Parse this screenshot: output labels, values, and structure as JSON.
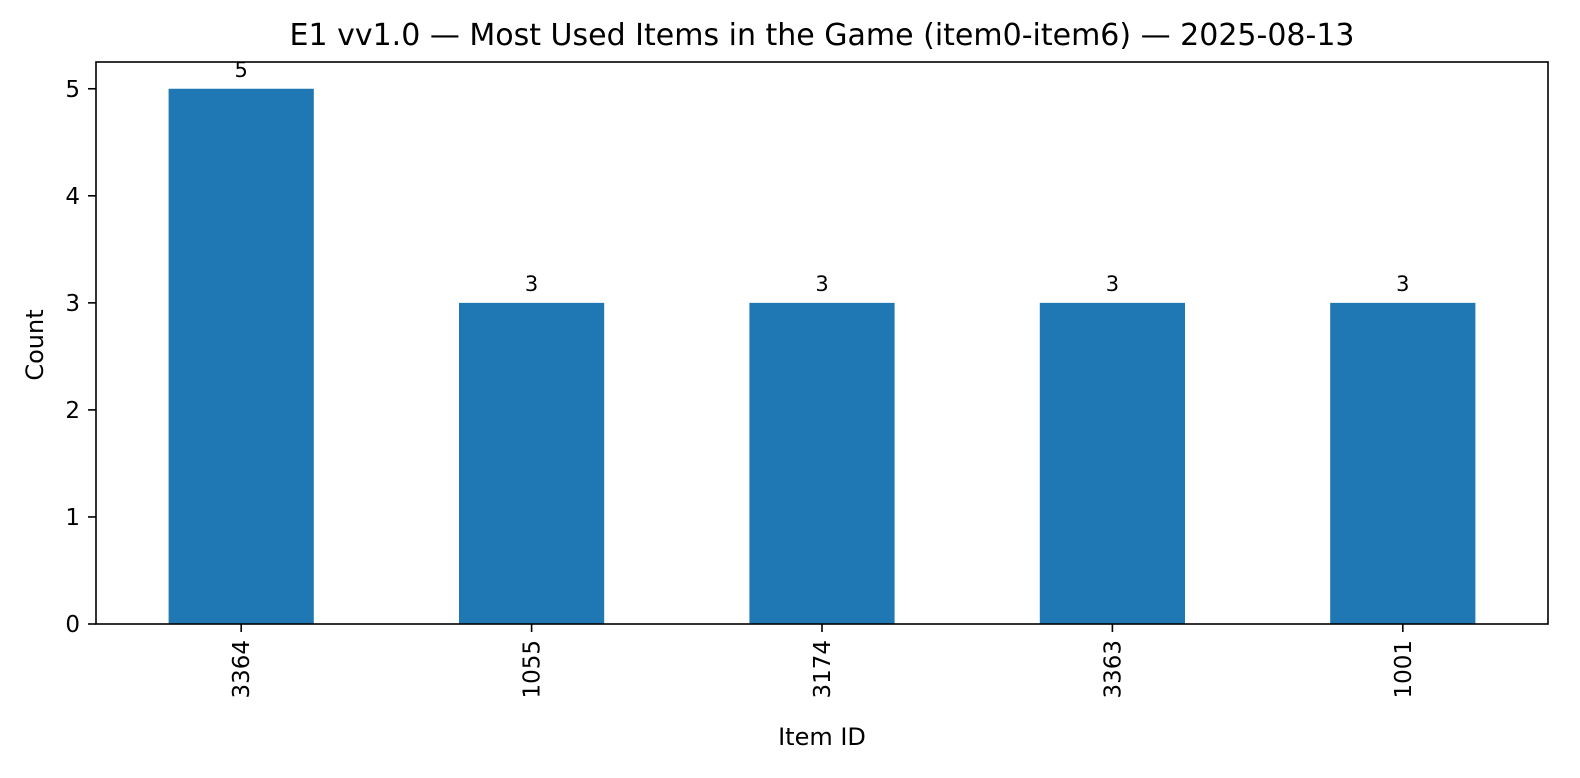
{
  "chart_data": {
    "type": "bar",
    "title": "E1 vv1.0 — Most Used Items in the Game (item0-item6) — 2025-08-13",
    "xlabel": "Item ID",
    "ylabel": "Count",
    "categories": [
      "3364",
      "1055",
      "3174",
      "3363",
      "1001"
    ],
    "values": [
      5,
      3,
      3,
      3,
      3
    ],
    "data_labels": [
      "5",
      "3",
      "3",
      "3",
      "3"
    ],
    "ylim": [
      0,
      5.25
    ],
    "yticks": [
      0,
      1,
      2,
      3,
      4,
      5
    ],
    "bar_color": "#1f77b4",
    "grid": false,
    "legend": "none"
  }
}
